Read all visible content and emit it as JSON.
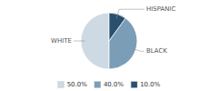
{
  "chart_data": {
    "type": "pie",
    "categories": [
      "WHITE",
      "BLACK",
      "HISPANIC"
    ],
    "values": [
      50.0,
      40.0,
      10.0
    ],
    "value_labels": [
      "50.0%",
      "40.0%",
      "10.0%"
    ],
    "colors": [
      "#cdd9e3",
      "#7a9db8",
      "#2b4f6e"
    ],
    "legend": "bottom"
  }
}
